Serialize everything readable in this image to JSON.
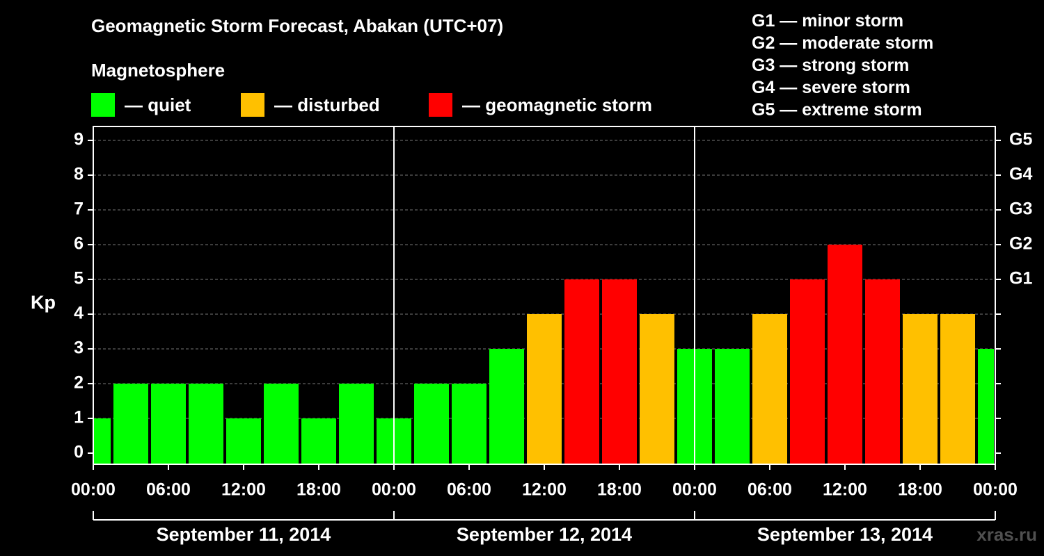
{
  "header": {
    "title": "Geomagnetic Storm Forecast, Abakan (UTC+07)",
    "section": "Magnetosphere"
  },
  "legend": [
    {
      "label": "— quiet",
      "color": "#00ff00"
    },
    {
      "label": "— disturbed",
      "color": "#ffc000"
    },
    {
      "label": "— geomagnetic storm",
      "color": "#ff0000"
    }
  ],
  "storm_levels": [
    "G1 — minor storm",
    "G2 — moderate storm",
    "G3 — strong storm",
    "G4 — severe storm",
    "G5 — extreme storm"
  ],
  "watermark": "xras.ru",
  "chart_data": {
    "type": "bar",
    "ylabel": "Kp",
    "ylim": [
      0,
      9
    ],
    "yticks": [
      0,
      1,
      2,
      3,
      4,
      5,
      6,
      7,
      8,
      9
    ],
    "right_axis_labels": [
      {
        "kp": 5,
        "label": "G1"
      },
      {
        "kp": 6,
        "label": "G2"
      },
      {
        "kp": 7,
        "label": "G3"
      },
      {
        "kp": 8,
        "label": "G4"
      },
      {
        "kp": 9,
        "label": "G5"
      }
    ],
    "x_tick_labels": [
      "00:00",
      "06:00",
      "12:00",
      "18:00",
      "00:00",
      "06:00",
      "12:00",
      "18:00",
      "00:00",
      "06:00",
      "12:00",
      "18:00",
      "00:00"
    ],
    "days": [
      "September 11, 2014",
      "September 12, 2014",
      "September 13, 2014"
    ],
    "interval_hours": 3,
    "values": [
      1,
      2,
      2,
      2,
      1,
      2,
      1,
      2,
      1,
      2,
      2,
      3,
      4,
      5,
      5,
      4,
      3,
      3,
      4,
      5,
      6,
      5,
      4,
      4,
      3
    ],
    "color_levels": {
      "quiet_max": 3,
      "disturbed_max": 4
    }
  }
}
